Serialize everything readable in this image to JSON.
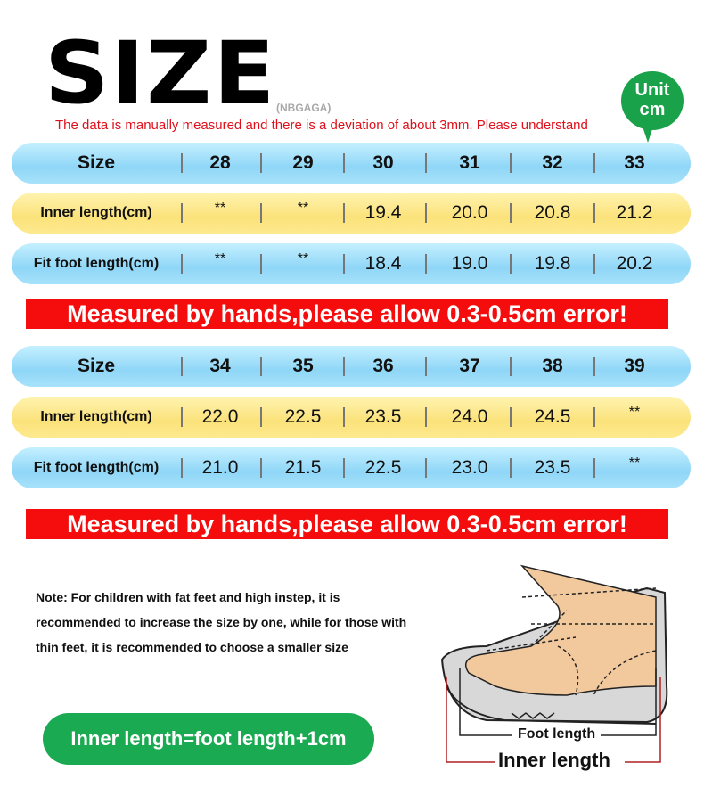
{
  "title": "SIZE",
  "brand": "(NBGAGA)",
  "disclaimer": "The data is manually measured and there is a deviation of about 3mm. Please understand",
  "unit_badge": {
    "line1": "Unit",
    "line2": "cm",
    "color": "#1aa24a"
  },
  "tables": [
    {
      "rows": [
        {
          "label": "Size",
          "values": [
            "28",
            "29",
            "30",
            "31",
            "32",
            "33"
          ]
        },
        {
          "label": "Inner length(cm)",
          "values": [
            "**",
            "**",
            "19.4",
            "20.0",
            "20.8",
            "21.2"
          ]
        },
        {
          "label": "Fit foot length(cm)",
          "values": [
            "**",
            "**",
            "18.4",
            "19.0",
            "19.8",
            "20.2"
          ]
        }
      ]
    },
    {
      "rows": [
        {
          "label": "Size",
          "values": [
            "34",
            "35",
            "36",
            "37",
            "38",
            "39"
          ]
        },
        {
          "label": "Inner length(cm)",
          "values": [
            "22.0",
            "22.5",
            "23.5",
            "24.0",
            "24.5",
            "**"
          ]
        },
        {
          "label": "Fit foot length(cm)",
          "values": [
            "21.0",
            "21.5",
            "22.5",
            "23.0",
            "23.5",
            "**"
          ]
        }
      ]
    }
  ],
  "warning": "Measured by hands,please allow 0.3-0.5cm error!",
  "note": "Note: For children with fat feet and high instep, it is recommended to increase the size by one, while for those with thin feet, it is recommended to choose a smaller size",
  "formula": "Inner length=foot length+1cm",
  "diagram": {
    "foot_length": "Foot length",
    "inner_length": "Inner length"
  },
  "colors": {
    "warning_red": "#f50d0d",
    "green": "#1aaa52",
    "blue_row": "#8fd6f7",
    "yellow_row": "#fbe27a"
  }
}
